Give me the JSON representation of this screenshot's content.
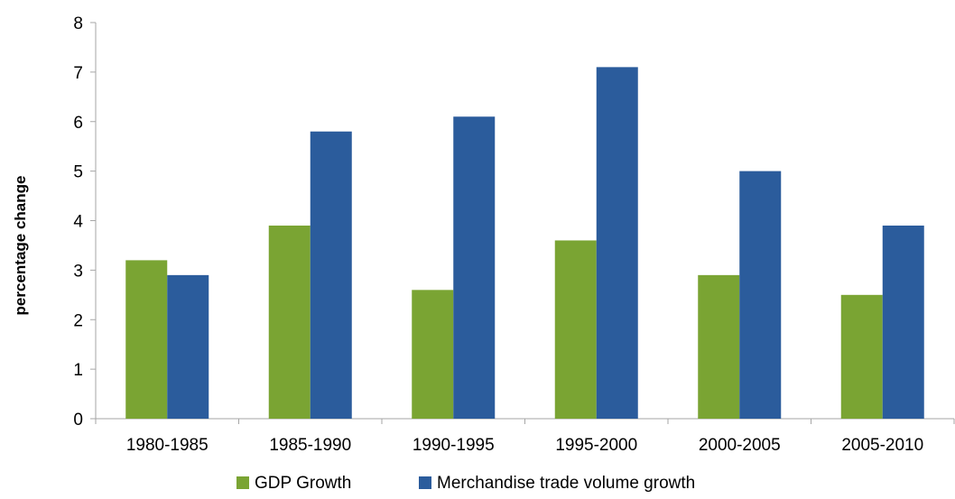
{
  "chart_data": {
    "type": "bar",
    "title": "",
    "xlabel": "",
    "ylabel": "percentage change",
    "ylim": [
      0,
      8
    ],
    "yticks": [
      0,
      1,
      2,
      3,
      4,
      5,
      6,
      7,
      8
    ],
    "grid": false,
    "legend_position": "bottom",
    "categories": [
      "1980-1985",
      "1985-1990",
      "1990-1995",
      "1995-2000",
      "2000-2005",
      "2005-2010"
    ],
    "series": [
      {
        "name": "GDP Growth",
        "color": "#7aa433",
        "values": [
          3.2,
          3.9,
          2.6,
          3.6,
          2.9,
          2.5
        ]
      },
      {
        "name": "Merchandise trade volume growth",
        "color": "#2b5c9c",
        "values": [
          2.9,
          5.8,
          6.1,
          7.1,
          5.0,
          3.9
        ]
      }
    ]
  }
}
